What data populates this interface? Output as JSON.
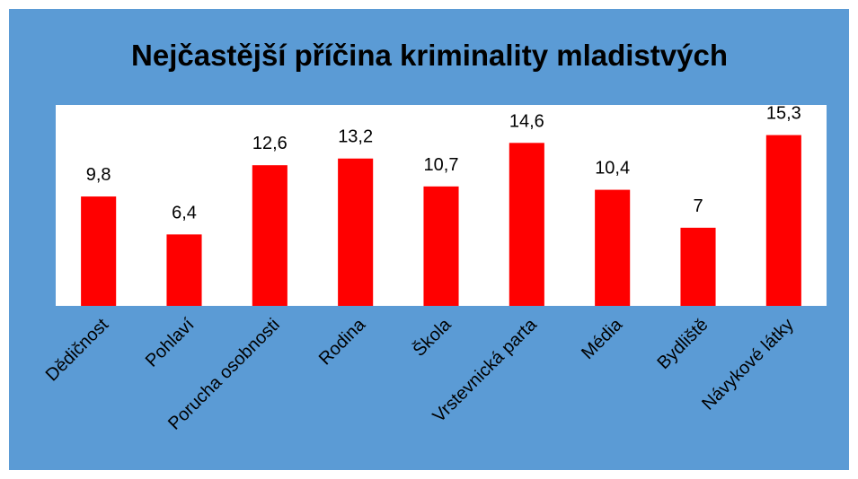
{
  "chart_data": {
    "type": "bar",
    "title": "Nejčastější příčina kriminality mladistvých",
    "categories": [
      "Dědičnost",
      "Pohlaví",
      "Porucha osobnosti",
      "Rodina",
      "Škola",
      "Vrstevnická parta",
      "Média",
      "Bydliště",
      "Návykové látky"
    ],
    "values": [
      9.8,
      6.4,
      12.6,
      13.2,
      10.7,
      14.6,
      10.4,
      7,
      15.3
    ],
    "value_labels": [
      "9,8",
      "6,4",
      "12,6",
      "13,2",
      "10,7",
      "14,6",
      "10,4",
      "7",
      "15,3"
    ],
    "color": "#ff0000",
    "ylim": [
      0,
      18
    ]
  }
}
